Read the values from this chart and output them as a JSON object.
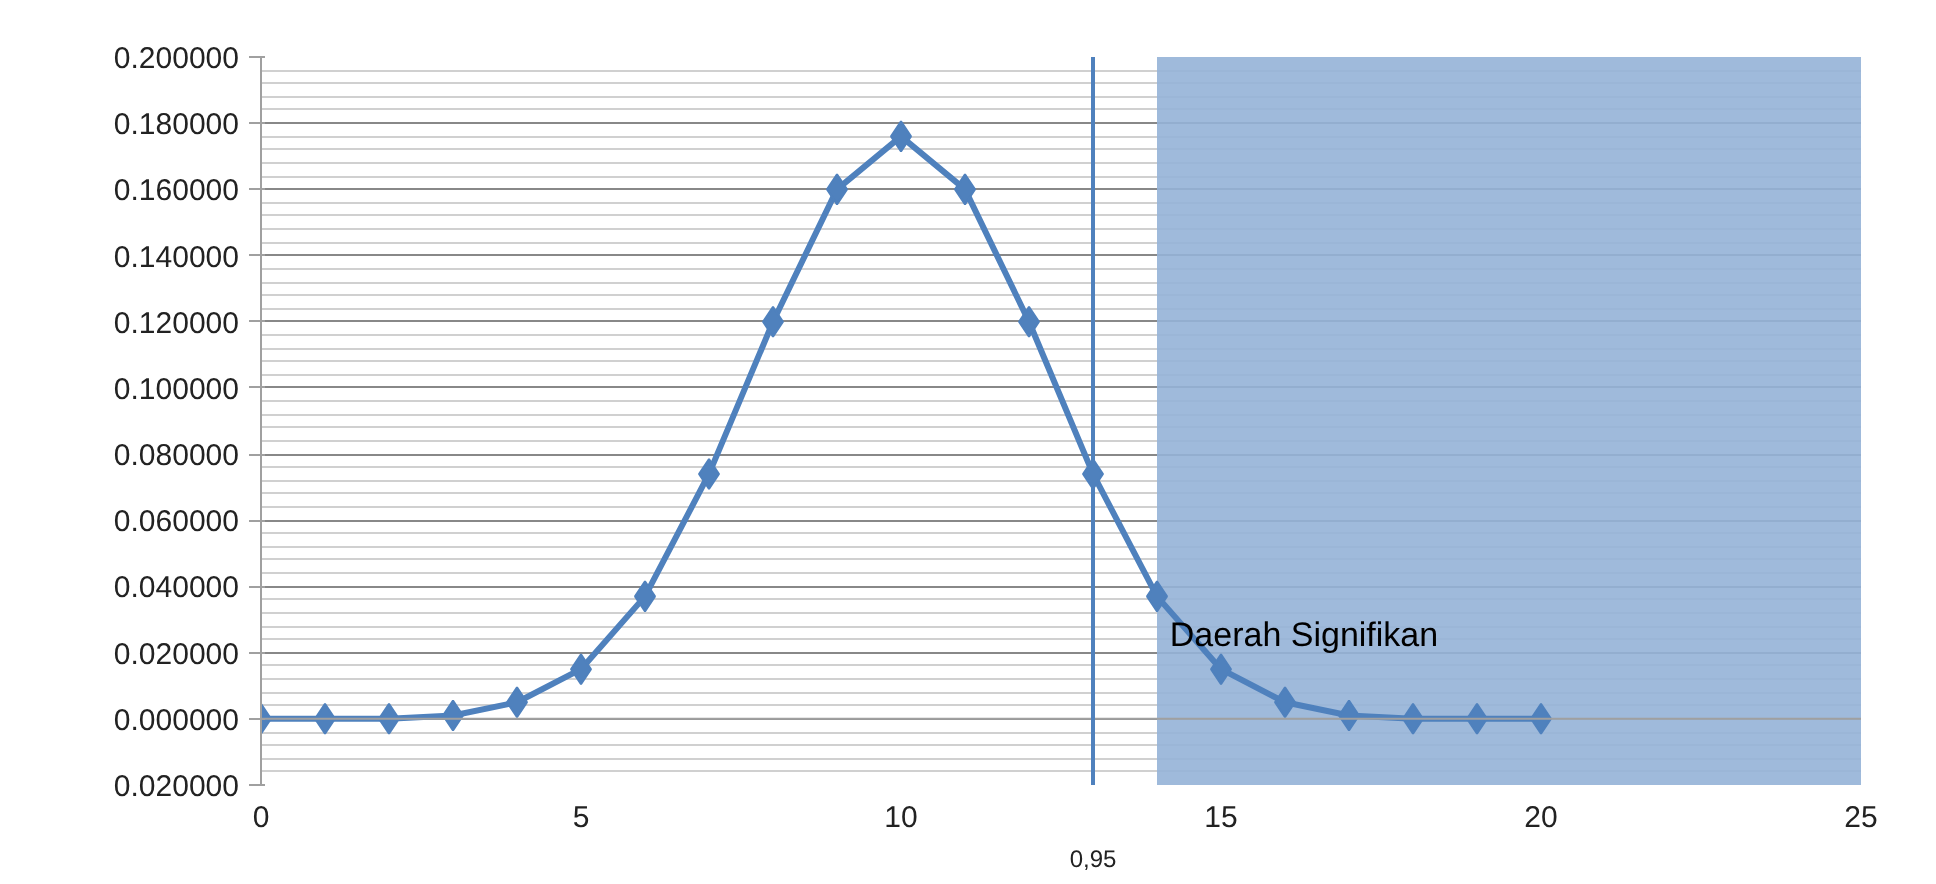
{
  "chart_data": {
    "type": "line",
    "x": [
      0,
      1,
      2,
      3,
      4,
      5,
      6,
      7,
      8,
      9,
      10,
      11,
      12,
      13,
      14,
      15,
      16,
      17,
      18,
      19,
      20
    ],
    "series": [
      {
        "color": "#4f81bd",
        "values": [
          0,
          0,
          0,
          0.001,
          0.005,
          0.015,
          0.037,
          0.074,
          0.12,
          0.16,
          0.176,
          0.16,
          0.12,
          0.074,
          0.037,
          0.015,
          0.005,
          0.001,
          0,
          0,
          0
        ]
      }
    ],
    "xlim": [
      0,
      25
    ],
    "xticks": [
      0,
      5,
      10,
      15,
      20,
      25
    ],
    "ylim": [
      -0.02,
      0.2
    ],
    "yticks": [
      {
        "value": -0.02,
        "label": "0.020000"
      },
      {
        "value": 0,
        "label": "0.000000"
      },
      {
        "value": 0.02,
        "label": "0.020000"
      },
      {
        "value": 0.04,
        "label": "0.040000"
      },
      {
        "value": 0.06,
        "label": "0.060000"
      },
      {
        "value": 0.08,
        "label": "0.080000"
      },
      {
        "value": 0.1,
        "label": "0.100000"
      },
      {
        "value": 0.12,
        "label": "0.120000"
      },
      {
        "value": 0.14,
        "label": "0.140000"
      },
      {
        "value": 0.16,
        "label": "0.160000"
      },
      {
        "value": 0.18,
        "label": "0.180000"
      },
      {
        "value": 0.2,
        "label": "0.200000"
      }
    ],
    "grid": "y",
    "marker": "diamond",
    "line_style": "solid",
    "ref_lines": [
      {
        "axis": "x",
        "value": 13,
        "color": "#4f81bd"
      }
    ],
    "annotations": [
      "0,95"
    ],
    "bands": [
      {
        "axis": "x",
        "from": 14,
        "to": 25,
        "label": "Daerah Signifikan",
        "color": "#95b3d7"
      }
    ]
  }
}
